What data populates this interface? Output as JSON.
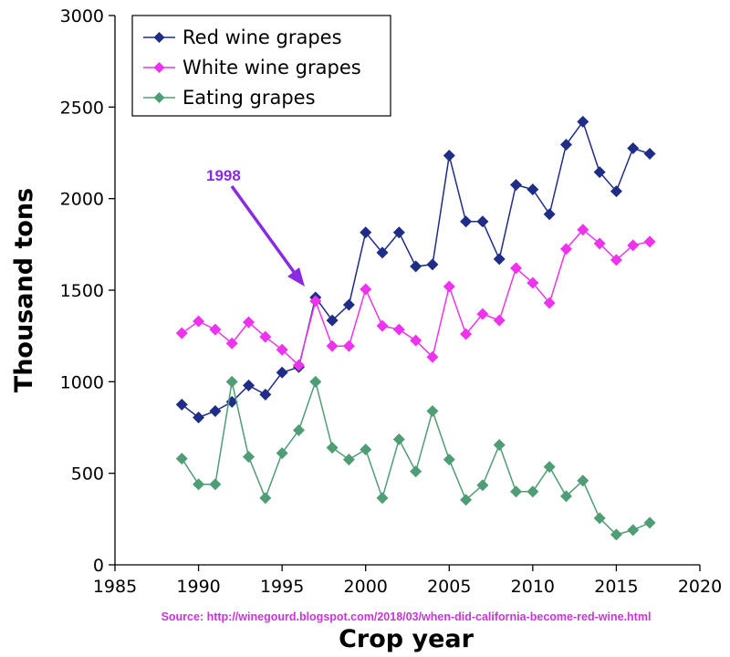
{
  "chart_data": {
    "type": "line",
    "xlabel": "Crop year",
    "ylabel": "Thousand tons",
    "xlim": [
      1985,
      2020
    ],
    "ylim": [
      0,
      3000
    ],
    "xticks": [
      "1985",
      "1990",
      "1995",
      "2000",
      "2005",
      "2010",
      "2015",
      "2020"
    ],
    "yticks": [
      "0",
      "500",
      "1000",
      "1500",
      "2000",
      "2500",
      "3000"
    ],
    "grid": false,
    "legend_position": "top-left",
    "x": [
      1989,
      1990,
      1991,
      1992,
      1993,
      1994,
      1995,
      1996,
      1997,
      1998,
      1999,
      2000,
      2001,
      2002,
      2003,
      2004,
      2005,
      2006,
      2007,
      2008,
      2009,
      2010,
      2011,
      2012,
      2013,
      2014,
      2015,
      2016,
      2017
    ],
    "series": [
      {
        "name": "Red wine grapes",
        "color": "#1f2d86",
        "values": [
          875,
          805,
          840,
          890,
          980,
          930,
          1050,
          1080,
          1460,
          1335,
          1420,
          1815,
          1705,
          1815,
          1630,
          1640,
          2235,
          1875,
          1875,
          1670,
          2075,
          2050,
          1915,
          2295,
          2420,
          2145,
          2040,
          2275,
          2245
        ]
      },
      {
        "name": "White wine grapes",
        "color": "#ee33ee",
        "values": [
          1265,
          1330,
          1285,
          1210,
          1325,
          1245,
          1175,
          1090,
          1440,
          1195,
          1195,
          1505,
          1305,
          1285,
          1225,
          1135,
          1520,
          1260,
          1370,
          1335,
          1620,
          1540,
          1430,
          1725,
          1830,
          1755,
          1665,
          1745,
          1765
        ]
      },
      {
        "name": "Eating grapes",
        "color": "#4f9d75",
        "values": [
          580,
          440,
          440,
          1000,
          590,
          365,
          610,
          735,
          1000,
          640,
          575,
          630,
          365,
          685,
          510,
          840,
          575,
          355,
          435,
          655,
          400,
          400,
          535,
          375,
          460,
          255,
          165,
          190,
          230
        ]
      }
    ],
    "annotations": [
      {
        "text": "1998",
        "color": "#8a2be2"
      }
    ],
    "source": {
      "text": "Source: http://winegourd.blogspot.com/2018/03/when-did-california-become-red-wine.html",
      "color": "#cc33dd"
    }
  }
}
